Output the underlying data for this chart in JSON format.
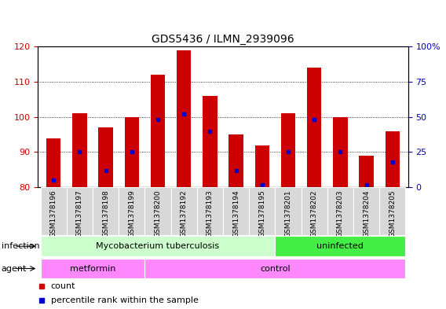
{
  "title": "GDS5436 / ILMN_2939096",
  "samples": [
    "GSM1378196",
    "GSM1378197",
    "GSM1378198",
    "GSM1378199",
    "GSM1378200",
    "GSM1378192",
    "GSM1378193",
    "GSM1378194",
    "GSM1378195",
    "GSM1378201",
    "GSM1378202",
    "GSM1378203",
    "GSM1378204",
    "GSM1378205"
  ],
  "counts": [
    94,
    101,
    97,
    100,
    112,
    119,
    106,
    95,
    92,
    101,
    114,
    100,
    89,
    96
  ],
  "percentile_ranks": [
    5,
    25,
    12,
    25,
    48,
    52,
    40,
    12,
    2,
    25,
    48,
    25,
    2,
    18
  ],
  "ylim_left": [
    80,
    120
  ],
  "ylim_right": [
    0,
    100
  ],
  "yticks_left": [
    80,
    90,
    100,
    110,
    120
  ],
  "yticks_right": [
    0,
    25,
    50,
    75,
    100
  ],
  "bar_color": "#cc0000",
  "marker_color": "#0000cc",
  "infection_groups": [
    {
      "label": "Mycobacterium tuberculosis",
      "start": 0,
      "end": 9,
      "color": "#ccffcc"
    },
    {
      "label": "uninfected",
      "start": 9,
      "end": 14,
      "color": "#44ee44"
    }
  ],
  "agent_groups": [
    {
      "label": "metformin",
      "start": 0,
      "end": 4,
      "color": "#ff88ff"
    },
    {
      "label": "control",
      "start": 4,
      "end": 14,
      "color": "#ff88ff"
    }
  ],
  "infection_row_label": "infection",
  "agent_row_label": "agent",
  "legend_count_label": "count",
  "legend_percentile_label": "percentile rank within the sample",
  "title_fontsize": 10,
  "axis_label_color_left": "#cc0000",
  "axis_label_color_right": "#0000cc"
}
